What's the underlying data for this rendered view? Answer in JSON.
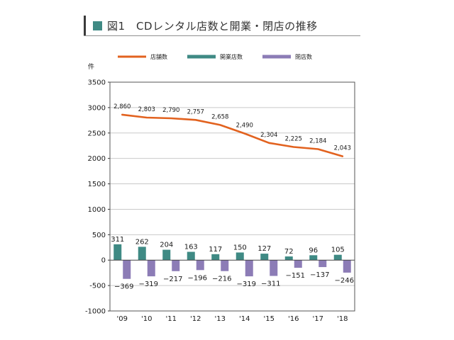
{
  "title": "図1　CDレンタル店数と開業・閉店の推移",
  "colors": {
    "title_square": "#3f8a84",
    "stores_line": "#e2621f",
    "openings_bar": "#3f8a84",
    "closings_bar": "#8c7cb6"
  },
  "chart_data": {
    "type": "bar",
    "categories": [
      "'09",
      "'10",
      "'11",
      "'12",
      "'13",
      "'14",
      "'15",
      "'16",
      "'17",
      "'18"
    ],
    "series": [
      {
        "name": "店舗数",
        "chart_type": "line",
        "values": [
          2860,
          2803,
          2790,
          2757,
          2658,
          2490,
          2304,
          2225,
          2184,
          2043
        ],
        "labels": [
          "2,860",
          "2,803",
          "2,790",
          "2,757",
          "2,658",
          "2,490",
          "2,304",
          "2,225",
          "2,184",
          "2,043"
        ]
      },
      {
        "name": "開業店数",
        "chart_type": "bar",
        "values": [
          311,
          262,
          204,
          163,
          117,
          150,
          127,
          72,
          96,
          105
        ],
        "labels": [
          "311",
          "262",
          "204",
          "163",
          "117",
          "150",
          "127",
          "72",
          "96",
          "105"
        ]
      },
      {
        "name": "閉店数",
        "chart_type": "bar",
        "values": [
          -369,
          -319,
          -217,
          -196,
          -216,
          -319,
          -311,
          -151,
          -137,
          -246
        ],
        "labels": [
          "−369",
          "−319",
          "−217",
          "−196",
          "−216",
          "−319",
          "−311",
          "−151",
          "−137",
          "−246"
        ]
      }
    ],
    "ylabel": "件",
    "ylim": [
      -1000,
      3500
    ],
    "yticks": [
      3500,
      3000,
      2500,
      2000,
      1500,
      1000,
      500,
      0,
      -500,
      -1000
    ],
    "ytick_labels": [
      "3500",
      "3000",
      "2500",
      "2000",
      "1500",
      "1000",
      "500",
      "0",
      "-500",
      "-1000"
    ],
    "grid": true,
    "legend": "top"
  }
}
